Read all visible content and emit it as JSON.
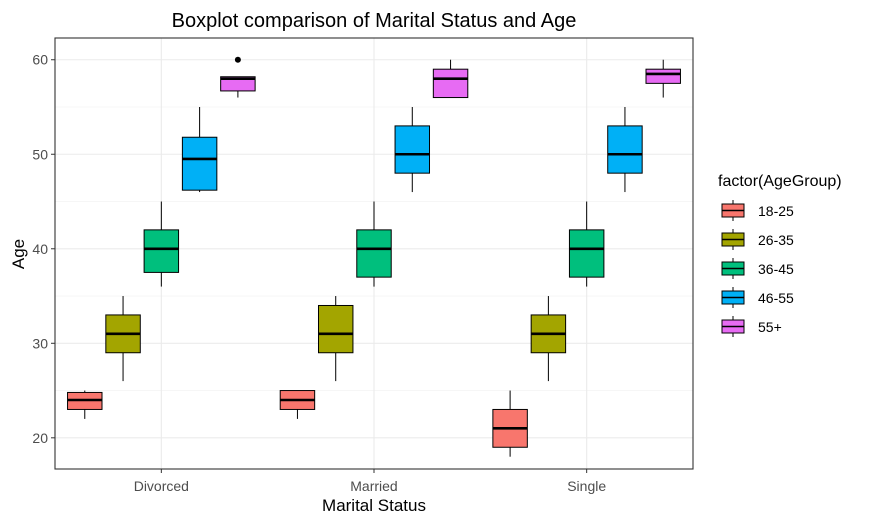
{
  "chart_data": {
    "type": "boxplot",
    "title": "Boxplot comparison of Marital Status and Age",
    "xlabel": "Marital Status",
    "ylabel": "Age",
    "ylim": [
      16.7,
      62.3
    ],
    "yticks": [
      20,
      30,
      40,
      50,
      60
    ],
    "grid": true,
    "categories": [
      "Divorced",
      "Married",
      "Single"
    ],
    "legend": {
      "title": "factor(AgeGroup)",
      "position": "right",
      "items": [
        "18-25",
        "26-35",
        "36-45",
        "46-55",
        "55+"
      ]
    },
    "series": [
      {
        "name": "18-25",
        "color": "#f8766d",
        "boxes": [
          {
            "category": "Divorced",
            "min": 22,
            "q1": 23,
            "median": 24,
            "q3": 24.8,
            "max": 25,
            "outliers": []
          },
          {
            "category": "Married",
            "min": 22,
            "q1": 23,
            "median": 24,
            "q3": 25,
            "max": 25,
            "outliers": []
          },
          {
            "category": "Single",
            "min": 18,
            "q1": 19,
            "median": 21,
            "q3": 23,
            "max": 25,
            "outliers": []
          }
        ]
      },
      {
        "name": "26-35",
        "color": "#a3a500",
        "boxes": [
          {
            "category": "Divorced",
            "min": 26,
            "q1": 29,
            "median": 31,
            "q3": 33,
            "max": 35,
            "outliers": []
          },
          {
            "category": "Married",
            "min": 26,
            "q1": 29,
            "median": 31,
            "q3": 34,
            "max": 35,
            "outliers": []
          },
          {
            "category": "Single",
            "min": 26,
            "q1": 29,
            "median": 31,
            "q3": 33,
            "max": 35,
            "outliers": []
          }
        ]
      },
      {
        "name": "36-45",
        "color": "#00bf7d",
        "boxes": [
          {
            "category": "Divorced",
            "min": 36,
            "q1": 37.5,
            "median": 40,
            "q3": 42,
            "max": 45,
            "outliers": []
          },
          {
            "category": "Married",
            "min": 36,
            "q1": 37,
            "median": 40,
            "q3": 42,
            "max": 45,
            "outliers": []
          },
          {
            "category": "Single",
            "min": 36,
            "q1": 37,
            "median": 40,
            "q3": 42,
            "max": 45,
            "outliers": []
          }
        ]
      },
      {
        "name": "46-55",
        "color": "#00b0f6",
        "boxes": [
          {
            "category": "Divorced",
            "min": 46,
            "q1": 46.2,
            "median": 49.5,
            "q3": 51.8,
            "max": 55,
            "outliers": []
          },
          {
            "category": "Married",
            "min": 46,
            "q1": 48,
            "median": 50,
            "q3": 53,
            "max": 55,
            "outliers": []
          },
          {
            "category": "Single",
            "min": 46,
            "q1": 48,
            "median": 50,
            "q3": 53,
            "max": 55,
            "outliers": []
          }
        ]
      },
      {
        "name": "55+",
        "color": "#e76bf3",
        "boxes": [
          {
            "category": "Divorced",
            "min": 56,
            "q1": 56.7,
            "median": 58,
            "q3": 58.2,
            "max": 58.2,
            "outliers": [
              60
            ]
          },
          {
            "category": "Married",
            "min": 56,
            "q1": 56,
            "median": 58,
            "q3": 59,
            "max": 60,
            "outliers": []
          },
          {
            "category": "Single",
            "min": 56,
            "q1": 57.5,
            "median": 58.5,
            "q3": 59,
            "max": 60,
            "outliers": []
          }
        ]
      }
    ]
  }
}
